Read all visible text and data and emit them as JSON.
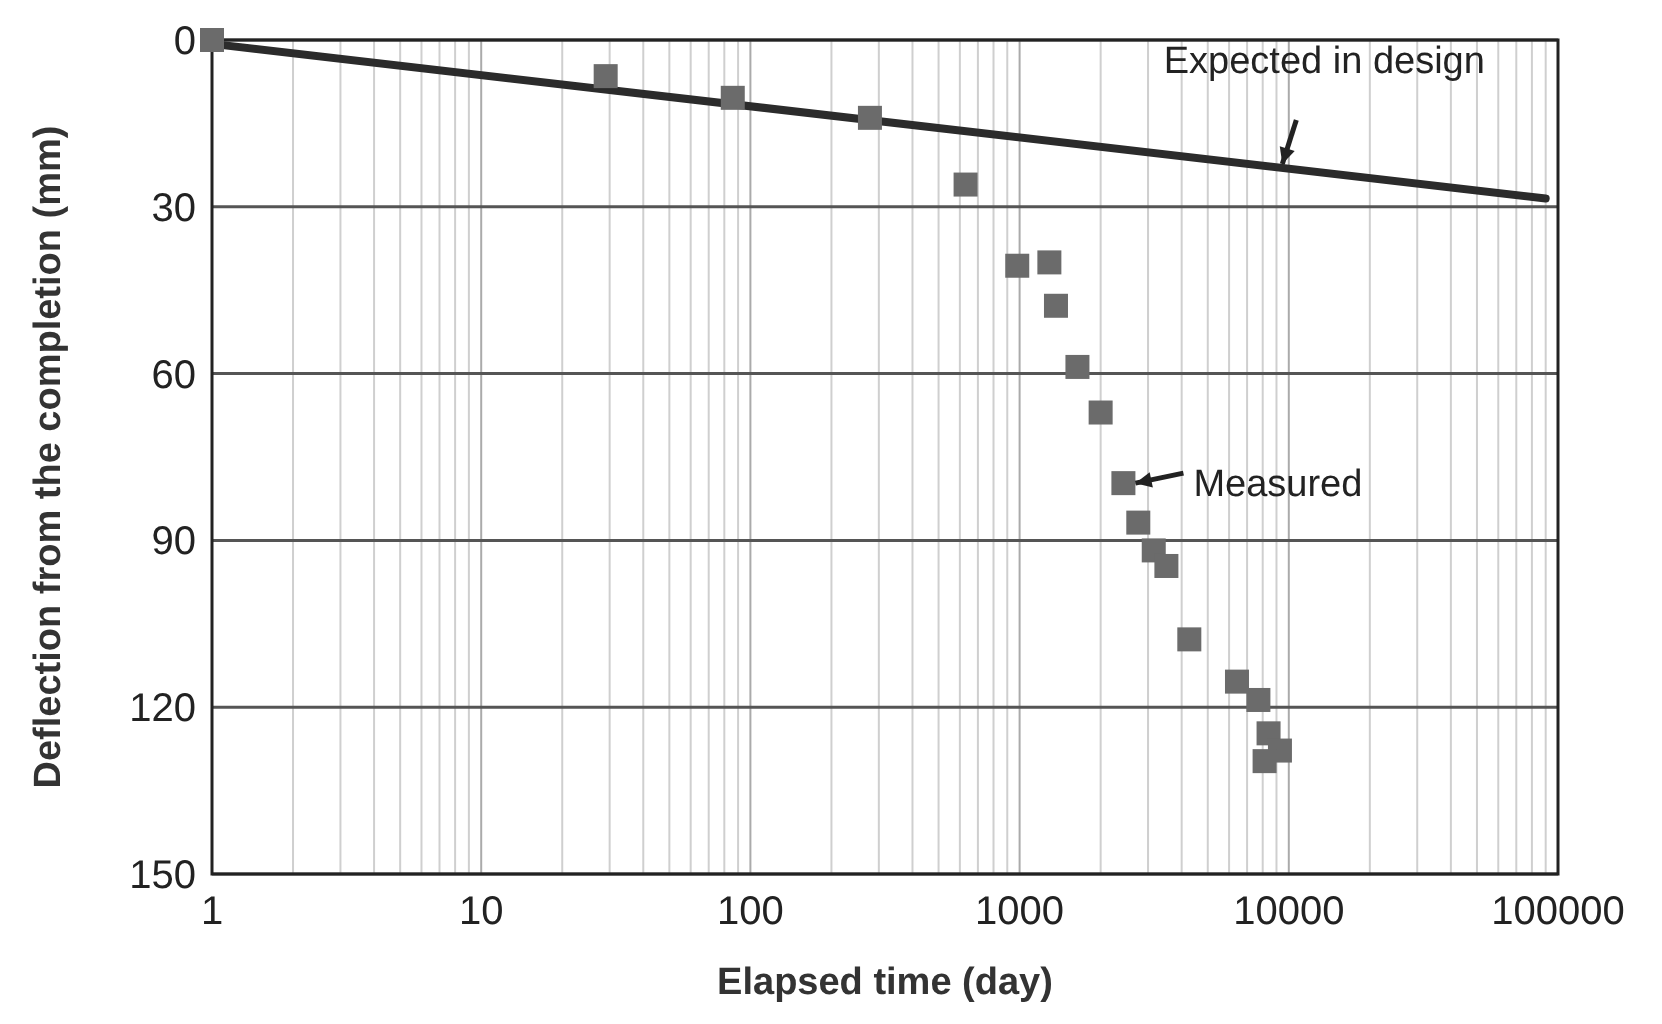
{
  "chart_data": {
    "type": "scatter",
    "xlabel": "Elapsed time (day)",
    "ylabel": "Deflection from the completion (mm)",
    "log": "x",
    "grid": true,
    "marker": "square",
    "xlim": [
      1,
      100000
    ],
    "xticks": [
      1,
      10,
      100,
      1000,
      10000,
      100000
    ],
    "ylim": [
      150,
      0
    ],
    "yticks": [
      0,
      30,
      60,
      90,
      120,
      150
    ],
    "series": [
      {
        "type": "line",
        "color": "#2b2b2b",
        "line_style": "solid",
        "marker": "none",
        "x": [
          1,
          90000
        ],
        "values": [
          0.7,
          28.5
        ]
      },
      {
        "color": "#6b6b6b",
        "x": [
          1,
          29,
          86,
          278,
          630,
          980,
          1290,
          1365,
          1640,
          2000,
          2430,
          2760,
          3150,
          3510,
          4270,
          6420,
          7710,
          8410,
          9270,
          8130
        ],
        "values": [
          0,
          6.5,
          10.4,
          14,
          26,
          40.6,
          40,
          47.8,
          58.8,
          67,
          79.7,
          86.8,
          91.8,
          94.6,
          107.8,
          115.4,
          118.7,
          124.7,
          127.8,
          129.7
        ]
      }
    ],
    "annotations": [
      {
        "text": "Expected in design",
        "x": 9300,
        "y": 23.4
      },
      {
        "text": "Measured",
        "x": 2430,
        "y": 79.7
      }
    ]
  }
}
